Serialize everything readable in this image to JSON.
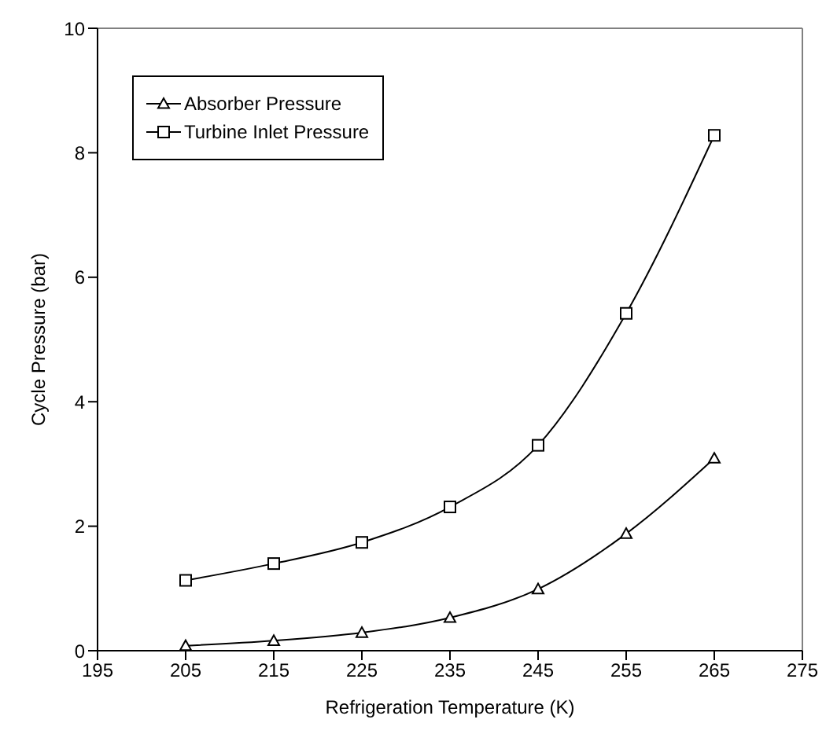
{
  "chart_data": {
    "type": "line",
    "xlabel": "Refrigeration Temperature (K)",
    "ylabel": "Cycle Pressure (bar)",
    "x": [
      205,
      215,
      225,
      235,
      245,
      255,
      265
    ],
    "series": [
      {
        "name": "Absorber Pressure",
        "color": "#000000",
        "marker": "triangle",
        "values": [
          0.08,
          0.16,
          0.29,
          0.53,
          0.99,
          1.88,
          3.09
        ]
      },
      {
        "name": "Turbine Inlet Pressure",
        "color": "#000000",
        "marker": "square",
        "values": [
          1.13,
          1.4,
          1.74,
          2.31,
          3.3,
          5.42,
          8.28
        ]
      }
    ],
    "xlim": [
      195,
      275
    ],
    "xticks": [
      195,
      205,
      215,
      225,
      235,
      245,
      255,
      265,
      275
    ],
    "ylim": [
      0,
      10
    ],
    "yticks": [
      0,
      2,
      4,
      6,
      8,
      10
    ],
    "grid": false,
    "legend": "top left",
    "line_style": "solid"
  }
}
